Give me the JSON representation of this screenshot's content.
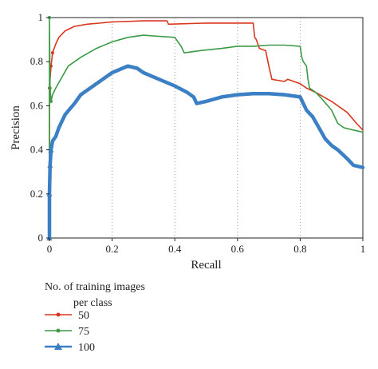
{
  "chart_data": {
    "type": "line",
    "title": "",
    "xlabel": "Recall",
    "ylabel": "Precision",
    "xlim": [
      0,
      1
    ],
    "ylim": [
      0,
      1
    ],
    "x_ticks": [
      0,
      0.2,
      0.4,
      0.6,
      0.8,
      1
    ],
    "x_tick_labels": [
      "0",
      "0.2",
      "0.4",
      "0.6",
      "0.8",
      "1"
    ],
    "y_ticks": [
      0,
      0.2,
      0.4,
      0.6,
      0.8,
      1
    ],
    "y_tick_labels": [
      "0",
      "0.2",
      "0.4",
      "0.6",
      "0.8",
      "1"
    ],
    "grid": true,
    "grid_orientation": "vertical",
    "legend_position": "bottom-left, below plot",
    "legend_title": "No. of training images\nper class",
    "series": [
      {
        "name": "50",
        "color": "#d9361e",
        "marker": "dot",
        "points": [
          [
            0,
            0.0
          ],
          [
            0.0,
            0.68
          ],
          [
            0.005,
            0.78
          ],
          [
            0.01,
            0.84
          ],
          [
            0.02,
            0.88
          ],
          [
            0.03,
            0.91
          ],
          [
            0.05,
            0.94
          ],
          [
            0.08,
            0.96
          ],
          [
            0.12,
            0.97
          ],
          [
            0.2,
            0.98
          ],
          [
            0.3,
            0.985
          ],
          [
            0.375,
            0.985
          ],
          [
            0.38,
            0.97
          ],
          [
            0.5,
            0.975
          ],
          [
            0.6,
            0.975
          ],
          [
            0.65,
            0.975
          ],
          [
            0.655,
            0.91
          ],
          [
            0.66,
            0.9
          ],
          [
            0.67,
            0.86
          ],
          [
            0.69,
            0.85
          ],
          [
            0.7,
            0.78
          ],
          [
            0.71,
            0.72
          ],
          [
            0.75,
            0.71
          ],
          [
            0.76,
            0.72
          ],
          [
            0.8,
            0.7
          ],
          [
            0.82,
            0.68
          ],
          [
            0.85,
            0.66
          ],
          [
            0.9,
            0.62
          ],
          [
            0.95,
            0.57
          ],
          [
            0.98,
            0.52
          ],
          [
            1.0,
            0.49
          ]
        ]
      },
      {
        "name": "75",
        "color": "#3a9a46",
        "marker": "dot",
        "points": [
          [
            0,
            0.0
          ],
          [
            0.0,
            1.0
          ],
          [
            0.002,
            0.68
          ],
          [
            0.005,
            0.62
          ],
          [
            0.01,
            0.65
          ],
          [
            0.02,
            0.68
          ],
          [
            0.04,
            0.73
          ],
          [
            0.06,
            0.78
          ],
          [
            0.1,
            0.82
          ],
          [
            0.15,
            0.86
          ],
          [
            0.2,
            0.89
          ],
          [
            0.25,
            0.91
          ],
          [
            0.3,
            0.92
          ],
          [
            0.35,
            0.915
          ],
          [
            0.4,
            0.91
          ],
          [
            0.42,
            0.87
          ],
          [
            0.43,
            0.84
          ],
          [
            0.48,
            0.85
          ],
          [
            0.55,
            0.86
          ],
          [
            0.6,
            0.87
          ],
          [
            0.65,
            0.87
          ],
          [
            0.7,
            0.875
          ],
          [
            0.75,
            0.875
          ],
          [
            0.8,
            0.87
          ],
          [
            0.805,
            0.82
          ],
          [
            0.81,
            0.8
          ],
          [
            0.82,
            0.78
          ],
          [
            0.825,
            0.72
          ],
          [
            0.83,
            0.68
          ],
          [
            0.85,
            0.66
          ],
          [
            0.87,
            0.63
          ],
          [
            0.9,
            0.58
          ],
          [
            0.92,
            0.52
          ],
          [
            0.94,
            0.5
          ],
          [
            0.97,
            0.49
          ],
          [
            1.0,
            0.48
          ]
        ]
      },
      {
        "name": "100",
        "color": "#3b7fc4",
        "marker": "triangle",
        "points": [
          [
            0,
            0.0
          ],
          [
            0.0,
            0.2
          ],
          [
            0.002,
            0.33
          ],
          [
            0.005,
            0.4
          ],
          [
            0.01,
            0.44
          ],
          [
            0.02,
            0.46
          ],
          [
            0.03,
            0.5
          ],
          [
            0.05,
            0.56
          ],
          [
            0.08,
            0.61
          ],
          [
            0.1,
            0.65
          ],
          [
            0.15,
            0.7
          ],
          [
            0.2,
            0.75
          ],
          [
            0.25,
            0.78
          ],
          [
            0.28,
            0.77
          ],
          [
            0.3,
            0.75
          ],
          [
            0.35,
            0.72
          ],
          [
            0.4,
            0.69
          ],
          [
            0.44,
            0.66
          ],
          [
            0.46,
            0.64
          ],
          [
            0.47,
            0.61
          ],
          [
            0.5,
            0.62
          ],
          [
            0.55,
            0.64
          ],
          [
            0.6,
            0.65
          ],
          [
            0.65,
            0.655
          ],
          [
            0.7,
            0.655
          ],
          [
            0.75,
            0.65
          ],
          [
            0.8,
            0.64
          ],
          [
            0.82,
            0.58
          ],
          [
            0.84,
            0.55
          ],
          [
            0.86,
            0.5
          ],
          [
            0.88,
            0.45
          ],
          [
            0.9,
            0.42
          ],
          [
            0.92,
            0.4
          ],
          [
            0.95,
            0.36
          ],
          [
            0.97,
            0.33
          ],
          [
            1.0,
            0.32
          ]
        ]
      }
    ]
  }
}
